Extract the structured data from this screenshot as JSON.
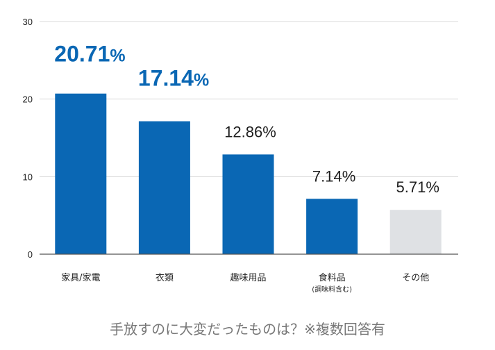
{
  "chart_data": {
    "type": "bar",
    "title": "手放すのに大変だったものは？※複数回答有",
    "xlabel": "",
    "ylabel": "",
    "ylim": [
      0,
      30
    ],
    "yticks": [
      0,
      10,
      20,
      30
    ],
    "grid": true,
    "categories": [
      "家具/家電",
      "衣類",
      "趣味用品",
      "食料品",
      "その他"
    ],
    "category_notes": [
      "",
      "",
      "",
      "(調味料含む)",
      ""
    ],
    "values": [
      20.71,
      17.14,
      12.86,
      7.14,
      5.71
    ],
    "data_labels": [
      "20.71",
      "17.14",
      "12.86",
      "7.14",
      "5.71"
    ],
    "label_unit": "%",
    "emphasized": [
      true,
      true,
      false,
      false,
      false
    ],
    "bar_colors": [
      "#0a67b4",
      "#0a67b4",
      "#0a67b4",
      "#0a67b4",
      "#dfe1e4"
    ],
    "highlight_label_color": "#0a67b4",
    "label_color": "#1f1f1f",
    "grid_color": "#d9d9d9",
    "axis_color": "#555555"
  }
}
